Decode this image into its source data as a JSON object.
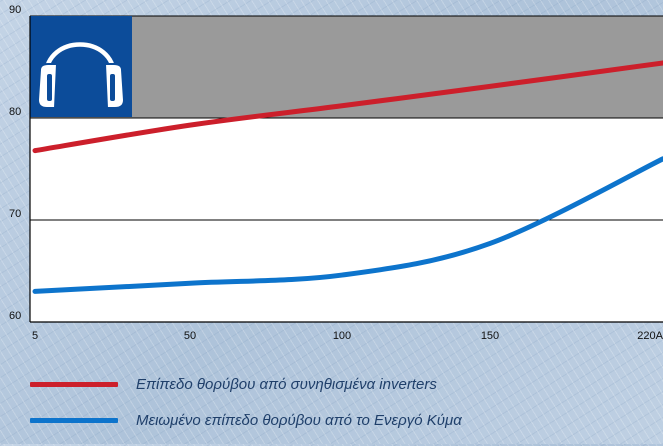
{
  "chart_data": {
    "type": "line",
    "x": [
      5,
      50,
      100,
      150,
      220
    ],
    "x_tick_labels": [
      "5",
      "50",
      "100",
      "150",
      "220A"
    ],
    "y_ticks": [
      60,
      70,
      80,
      90
    ],
    "ylim": [
      60,
      90
    ],
    "grid": true,
    "shaded_band": {
      "from": 80,
      "to": 90,
      "color": "#9a9a9a"
    },
    "icon": "headphones-icon",
    "series": [
      {
        "name": "Επίπεδο θορύβου από συνηθισμένα inverters",
        "color": "#cc1f2b",
        "values": [
          76.8,
          79.3,
          81.2,
          83.1,
          85.4
        ]
      },
      {
        "name": "Μειωμένο επίπεδο θορύβου από το Ενεργό Κύμα",
        "color": "#0d74cc",
        "values": [
          63.0,
          63.8,
          64.6,
          67.7,
          76.0
        ]
      }
    ]
  }
}
